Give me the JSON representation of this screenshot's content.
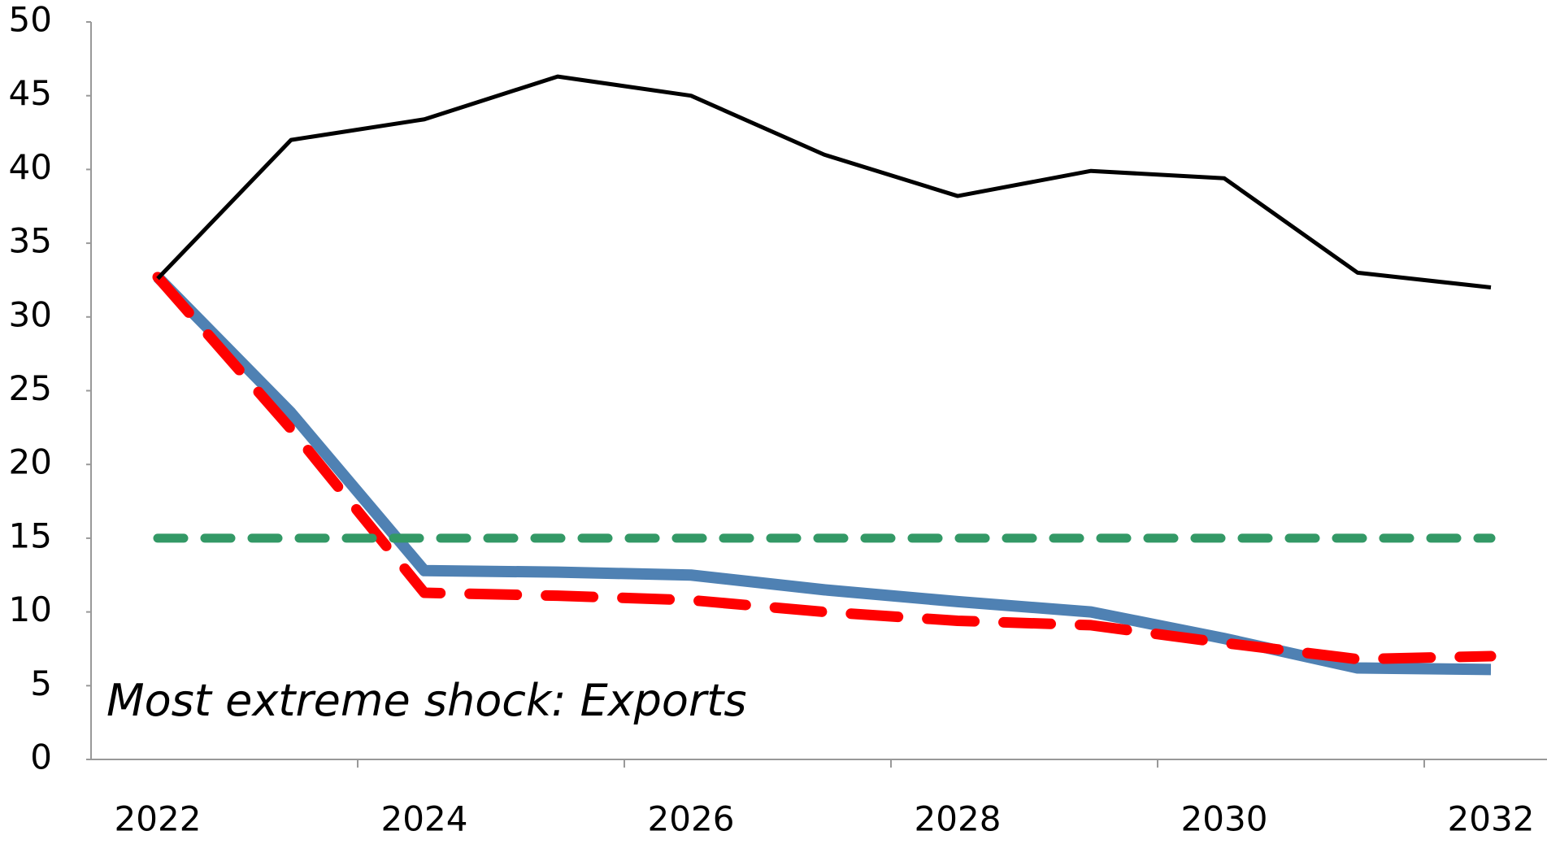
{
  "chart_data": {
    "type": "line",
    "annotation": "Most extreme shock: Exports",
    "categories": [
      "2022",
      null,
      "2024",
      null,
      "2026",
      null,
      "2028",
      null,
      "2030",
      null,
      "2032"
    ],
    "ylim": [
      0,
      50
    ],
    "yticks": [
      0,
      5,
      10,
      15,
      20,
      25,
      30,
      35,
      40,
      45,
      50
    ],
    "grid": false,
    "series": [
      {
        "color": "#4f81b3",
        "linestyle": "solid",
        "values": [
          32.7,
          23.5,
          12.8,
          12.7,
          12.5,
          11.5,
          10.7,
          10.0,
          8.2,
          6.2,
          6.1
        ]
      },
      {
        "color": "#ff0000",
        "linestyle": "dashed",
        "values": [
          32.7,
          22.4,
          11.3,
          11.1,
          10.8,
          10.0,
          9.4,
          9.1,
          7.9,
          6.8,
          7.0
        ]
      },
      {
        "color": "#339966",
        "linestyle": "dashed",
        "values": [
          15,
          15,
          15,
          15,
          15,
          15,
          15,
          15,
          15,
          15,
          15
        ]
      },
      {
        "color": "#000000",
        "linestyle": "solid",
        "values": [
          32.6,
          42.0,
          43.4,
          46.3,
          45.0,
          41.0,
          38.2,
          39.9,
          39.4,
          33.0,
          32.0
        ]
      }
    ]
  }
}
